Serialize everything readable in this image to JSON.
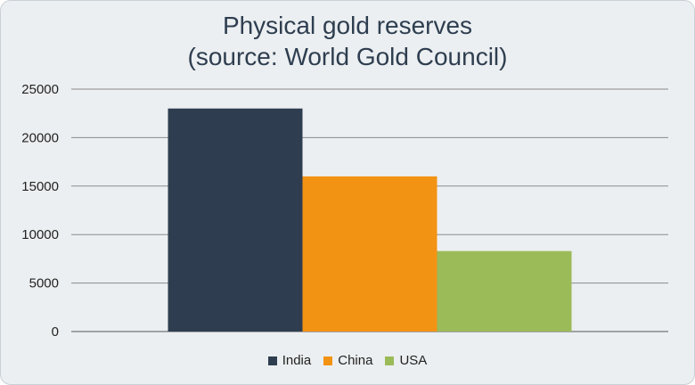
{
  "chart_data": {
    "type": "bar",
    "title": "Physical gold reserves\n(source: World Gold Council)",
    "categories": [
      "India",
      "China",
      "USA"
    ],
    "values": [
      23000,
      16000,
      8300
    ],
    "colors": [
      "#2e3e50",
      "#f39313",
      "#9bbb59"
    ],
    "ylim": [
      0,
      25000
    ],
    "yticks": [
      "0",
      "5000",
      "10000",
      "15000",
      "20000",
      "25000"
    ],
    "grid": true,
    "legend_position": "bottom"
  }
}
